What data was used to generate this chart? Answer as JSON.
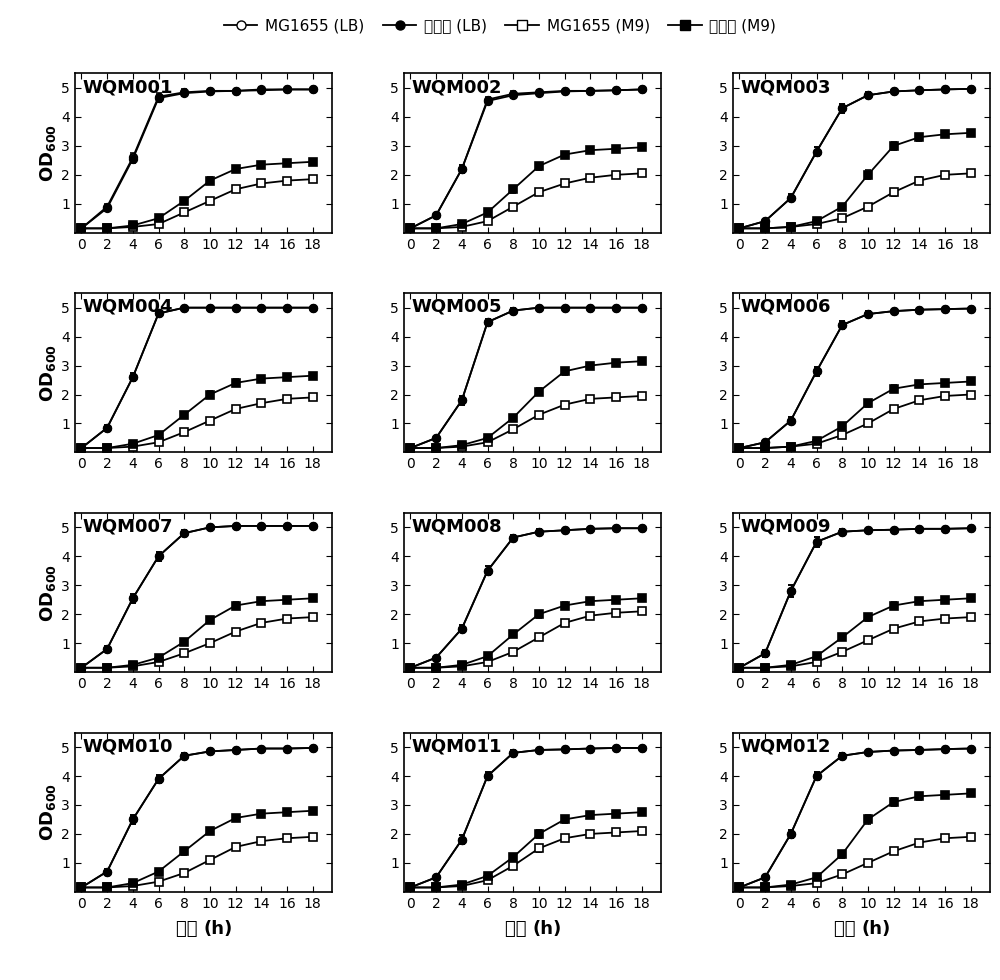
{
  "time_points": [
    0,
    2,
    4,
    6,
    8,
    10,
    12,
    14,
    16,
    18
  ],
  "subplots": [
    {
      "label": "WQM001",
      "MG1655_LB": [
        0.15,
        0.9,
        2.6,
        4.7,
        4.85,
        4.9,
        4.9,
        4.95,
        4.95,
        4.95
      ],
      "mutant_LB": [
        0.15,
        0.85,
        2.55,
        4.65,
        4.82,
        4.88,
        4.9,
        4.92,
        4.95,
        4.95
      ],
      "MG1655_M9": [
        0.15,
        0.15,
        0.2,
        0.3,
        0.7,
        1.1,
        1.5,
        1.7,
        1.8,
        1.85
      ],
      "mutant_M9": [
        0.15,
        0.15,
        0.25,
        0.5,
        1.1,
        1.8,
        2.2,
        2.35,
        2.4,
        2.45
      ],
      "MG1655_LB_err": [
        0.05,
        0.1,
        0.15,
        0.12,
        0.1,
        0.08,
        0.07,
        0.07,
        0.06,
        0.06
      ],
      "mutant_LB_err": [
        0.05,
        0.1,
        0.15,
        0.12,
        0.1,
        0.08,
        0.07,
        0.07,
        0.06,
        0.06
      ],
      "MG1655_M9_err": [
        0.02,
        0.02,
        0.03,
        0.05,
        0.08,
        0.1,
        0.1,
        0.1,
        0.08,
        0.08
      ],
      "mutant_M9_err": [
        0.02,
        0.02,
        0.04,
        0.07,
        0.1,
        0.12,
        0.12,
        0.1,
        0.08,
        0.08
      ]
    },
    {
      "label": "WQM002",
      "MG1655_LB": [
        0.15,
        0.6,
        2.2,
        4.6,
        4.8,
        4.85,
        4.9,
        4.9,
        4.92,
        4.95
      ],
      "mutant_LB": [
        0.15,
        0.6,
        2.2,
        4.55,
        4.75,
        4.82,
        4.88,
        4.9,
        4.92,
        4.95
      ],
      "MG1655_M9": [
        0.15,
        0.15,
        0.2,
        0.4,
        0.9,
        1.4,
        1.7,
        1.9,
        2.0,
        2.05
      ],
      "mutant_M9": [
        0.15,
        0.15,
        0.3,
        0.7,
        1.5,
        2.3,
        2.7,
        2.85,
        2.9,
        2.95
      ],
      "MG1655_LB_err": [
        0.05,
        0.08,
        0.15,
        0.1,
        0.08,
        0.07,
        0.06,
        0.06,
        0.05,
        0.05
      ],
      "mutant_LB_err": [
        0.05,
        0.08,
        0.15,
        0.1,
        0.08,
        0.07,
        0.06,
        0.06,
        0.05,
        0.05
      ],
      "MG1655_M9_err": [
        0.02,
        0.02,
        0.03,
        0.06,
        0.1,
        0.1,
        0.1,
        0.1,
        0.08,
        0.08
      ],
      "mutant_M9_err": [
        0.02,
        0.02,
        0.04,
        0.08,
        0.12,
        0.12,
        0.1,
        0.1,
        0.08,
        0.08
      ]
    },
    {
      "label": "WQM003",
      "MG1655_LB": [
        0.15,
        0.4,
        1.2,
        2.8,
        4.3,
        4.75,
        4.88,
        4.92,
        4.95,
        4.97
      ],
      "mutant_LB": [
        0.15,
        0.4,
        1.2,
        2.8,
        4.3,
        4.75,
        4.88,
        4.92,
        4.95,
        4.97
      ],
      "MG1655_M9": [
        0.15,
        0.15,
        0.2,
        0.3,
        0.5,
        0.9,
        1.4,
        1.8,
        2.0,
        2.05
      ],
      "mutant_M9": [
        0.15,
        0.15,
        0.2,
        0.4,
        0.9,
        2.0,
        3.0,
        3.3,
        3.4,
        3.45
      ],
      "MG1655_LB_err": [
        0.05,
        0.08,
        0.12,
        0.15,
        0.15,
        0.1,
        0.07,
        0.06,
        0.05,
        0.05
      ],
      "mutant_LB_err": [
        0.05,
        0.08,
        0.12,
        0.15,
        0.15,
        0.1,
        0.07,
        0.06,
        0.05,
        0.05
      ],
      "MG1655_M9_err": [
        0.02,
        0.02,
        0.03,
        0.04,
        0.07,
        0.1,
        0.12,
        0.12,
        0.1,
        0.08
      ],
      "mutant_M9_err": [
        0.02,
        0.02,
        0.03,
        0.06,
        0.1,
        0.15,
        0.15,
        0.12,
        0.1,
        0.08
      ]
    },
    {
      "label": "WQM004",
      "MG1655_LB": [
        0.15,
        0.85,
        2.6,
        4.8,
        5.0,
        5.0,
        5.0,
        5.0,
        5.0,
        5.0
      ],
      "mutant_LB": [
        0.15,
        0.85,
        2.6,
        4.8,
        5.0,
        5.0,
        5.0,
        5.0,
        5.0,
        5.0
      ],
      "MG1655_M9": [
        0.15,
        0.15,
        0.2,
        0.35,
        0.7,
        1.1,
        1.5,
        1.7,
        1.85,
        1.9
      ],
      "mutant_M9": [
        0.15,
        0.15,
        0.3,
        0.6,
        1.3,
        2.0,
        2.4,
        2.55,
        2.6,
        2.65
      ],
      "MG1655_LB_err": [
        0.05,
        0.1,
        0.15,
        0.1,
        0.07,
        0.06,
        0.05,
        0.05,
        0.05,
        0.05
      ],
      "mutant_LB_err": [
        0.05,
        0.1,
        0.15,
        0.1,
        0.07,
        0.06,
        0.05,
        0.05,
        0.05,
        0.05
      ],
      "MG1655_M9_err": [
        0.02,
        0.02,
        0.03,
        0.05,
        0.08,
        0.1,
        0.1,
        0.1,
        0.08,
        0.08
      ],
      "mutant_M9_err": [
        0.02,
        0.02,
        0.04,
        0.07,
        0.1,
        0.12,
        0.12,
        0.1,
        0.08,
        0.08
      ]
    },
    {
      "label": "WQM005",
      "MG1655_LB": [
        0.15,
        0.5,
        1.8,
        4.5,
        4.9,
        5.0,
        5.0,
        5.0,
        5.0,
        5.0
      ],
      "mutant_LB": [
        0.15,
        0.5,
        1.8,
        4.5,
        4.9,
        5.0,
        5.0,
        5.0,
        5.0,
        5.0
      ],
      "MG1655_M9": [
        0.15,
        0.15,
        0.2,
        0.35,
        0.8,
        1.3,
        1.65,
        1.85,
        1.9,
        1.95
      ],
      "mutant_M9": [
        0.15,
        0.15,
        0.25,
        0.5,
        1.2,
        2.1,
        2.8,
        3.0,
        3.1,
        3.15
      ],
      "MG1655_LB_err": [
        0.05,
        0.08,
        0.15,
        0.12,
        0.08,
        0.07,
        0.06,
        0.05,
        0.05,
        0.05
      ],
      "mutant_LB_err": [
        0.05,
        0.08,
        0.15,
        0.12,
        0.08,
        0.07,
        0.06,
        0.05,
        0.05,
        0.05
      ],
      "MG1655_M9_err": [
        0.02,
        0.02,
        0.03,
        0.05,
        0.09,
        0.1,
        0.1,
        0.1,
        0.08,
        0.08
      ],
      "mutant_M9_err": [
        0.02,
        0.02,
        0.04,
        0.07,
        0.1,
        0.13,
        0.12,
        0.1,
        0.08,
        0.08
      ]
    },
    {
      "label": "WQM006",
      "MG1655_LB": [
        0.15,
        0.35,
        1.1,
        2.8,
        4.4,
        4.78,
        4.88,
        4.93,
        4.95,
        4.97
      ],
      "mutant_LB": [
        0.15,
        0.35,
        1.1,
        2.8,
        4.4,
        4.78,
        4.88,
        4.93,
        4.95,
        4.97
      ],
      "MG1655_M9": [
        0.15,
        0.15,
        0.2,
        0.3,
        0.6,
        1.0,
        1.5,
        1.8,
        1.95,
        2.0
      ],
      "mutant_M9": [
        0.15,
        0.15,
        0.2,
        0.4,
        0.9,
        1.7,
        2.2,
        2.35,
        2.4,
        2.45
      ],
      "MG1655_LB_err": [
        0.05,
        0.07,
        0.12,
        0.15,
        0.15,
        0.1,
        0.07,
        0.06,
        0.05,
        0.05
      ],
      "mutant_LB_err": [
        0.05,
        0.07,
        0.12,
        0.15,
        0.15,
        0.1,
        0.07,
        0.06,
        0.05,
        0.05
      ],
      "MG1655_M9_err": [
        0.02,
        0.02,
        0.03,
        0.04,
        0.08,
        0.1,
        0.1,
        0.1,
        0.08,
        0.08
      ],
      "mutant_M9_err": [
        0.02,
        0.02,
        0.03,
        0.06,
        0.1,
        0.12,
        0.12,
        0.1,
        0.08,
        0.08
      ]
    },
    {
      "label": "WQM007",
      "MG1655_LB": [
        0.15,
        0.8,
        2.55,
        4.0,
        4.8,
        5.0,
        5.05,
        5.05,
        5.05,
        5.05
      ],
      "mutant_LB": [
        0.15,
        0.8,
        2.55,
        4.0,
        4.8,
        5.0,
        5.05,
        5.05,
        5.05,
        5.05
      ],
      "MG1655_M9": [
        0.15,
        0.15,
        0.2,
        0.35,
        0.65,
        1.0,
        1.4,
        1.7,
        1.85,
        1.9
      ],
      "mutant_M9": [
        0.15,
        0.15,
        0.25,
        0.5,
        1.05,
        1.8,
        2.3,
        2.45,
        2.5,
        2.55
      ],
      "MG1655_LB_err": [
        0.05,
        0.1,
        0.15,
        0.15,
        0.1,
        0.07,
        0.06,
        0.05,
        0.05,
        0.05
      ],
      "mutant_LB_err": [
        0.05,
        0.1,
        0.15,
        0.15,
        0.1,
        0.07,
        0.06,
        0.05,
        0.05,
        0.05
      ],
      "MG1655_M9_err": [
        0.02,
        0.02,
        0.03,
        0.05,
        0.08,
        0.1,
        0.1,
        0.1,
        0.08,
        0.08
      ],
      "mutant_M9_err": [
        0.02,
        0.02,
        0.04,
        0.07,
        0.1,
        0.12,
        0.12,
        0.1,
        0.08,
        0.08
      ]
    },
    {
      "label": "WQM008",
      "MG1655_LB": [
        0.15,
        0.5,
        1.5,
        3.5,
        4.65,
        4.85,
        4.9,
        4.95,
        4.97,
        4.97
      ],
      "mutant_LB": [
        0.15,
        0.5,
        1.5,
        3.5,
        4.65,
        4.85,
        4.9,
        4.95,
        4.97,
        4.97
      ],
      "MG1655_M9": [
        0.15,
        0.15,
        0.2,
        0.35,
        0.7,
        1.2,
        1.7,
        1.95,
        2.05,
        2.1
      ],
      "mutant_M9": [
        0.15,
        0.15,
        0.25,
        0.55,
        1.3,
        2.0,
        2.3,
        2.45,
        2.5,
        2.55
      ],
      "MG1655_LB_err": [
        0.05,
        0.07,
        0.12,
        0.15,
        0.1,
        0.08,
        0.06,
        0.06,
        0.05,
        0.05
      ],
      "mutant_LB_err": [
        0.05,
        0.07,
        0.12,
        0.15,
        0.1,
        0.08,
        0.06,
        0.06,
        0.05,
        0.05
      ],
      "MG1655_M9_err": [
        0.02,
        0.02,
        0.03,
        0.05,
        0.09,
        0.1,
        0.1,
        0.1,
        0.08,
        0.08
      ],
      "mutant_M9_err": [
        0.02,
        0.02,
        0.04,
        0.07,
        0.1,
        0.12,
        0.12,
        0.1,
        0.08,
        0.08
      ]
    },
    {
      "label": "WQM009",
      "MG1655_LB": [
        0.15,
        0.65,
        2.8,
        4.5,
        4.85,
        4.9,
        4.92,
        4.95,
        4.95,
        4.97
      ],
      "mutant_LB": [
        0.15,
        0.65,
        2.8,
        4.5,
        4.85,
        4.9,
        4.92,
        4.95,
        4.95,
        4.97
      ],
      "MG1655_M9": [
        0.15,
        0.15,
        0.2,
        0.35,
        0.7,
        1.1,
        1.5,
        1.75,
        1.85,
        1.9
      ],
      "mutant_M9": [
        0.15,
        0.15,
        0.25,
        0.55,
        1.2,
        1.9,
        2.3,
        2.45,
        2.5,
        2.55
      ],
      "MG1655_LB_err": [
        0.05,
        0.12,
        0.22,
        0.18,
        0.1,
        0.08,
        0.07,
        0.06,
        0.05,
        0.05
      ],
      "mutant_LB_err": [
        0.05,
        0.12,
        0.22,
        0.18,
        0.1,
        0.08,
        0.07,
        0.06,
        0.05,
        0.05
      ],
      "MG1655_M9_err": [
        0.02,
        0.02,
        0.03,
        0.05,
        0.08,
        0.1,
        0.1,
        0.1,
        0.08,
        0.08
      ],
      "mutant_M9_err": [
        0.02,
        0.02,
        0.04,
        0.07,
        0.1,
        0.12,
        0.12,
        0.1,
        0.08,
        0.08
      ]
    },
    {
      "label": "WQM010",
      "MG1655_LB": [
        0.15,
        0.7,
        2.5,
        3.9,
        4.7,
        4.85,
        4.9,
        4.95,
        4.95,
        4.97
      ],
      "mutant_LB": [
        0.15,
        0.7,
        2.5,
        3.9,
        4.7,
        4.85,
        4.9,
        4.95,
        4.95,
        4.97
      ],
      "MG1655_M9": [
        0.15,
        0.15,
        0.2,
        0.35,
        0.65,
        1.1,
        1.55,
        1.75,
        1.85,
        1.9
      ],
      "mutant_M9": [
        0.15,
        0.15,
        0.3,
        0.7,
        1.4,
        2.1,
        2.55,
        2.7,
        2.75,
        2.8
      ],
      "MG1655_LB_err": [
        0.05,
        0.1,
        0.15,
        0.15,
        0.1,
        0.08,
        0.07,
        0.06,
        0.05,
        0.05
      ],
      "mutant_LB_err": [
        0.05,
        0.1,
        0.15,
        0.15,
        0.1,
        0.08,
        0.07,
        0.06,
        0.05,
        0.05
      ],
      "MG1655_M9_err": [
        0.02,
        0.02,
        0.03,
        0.05,
        0.08,
        0.1,
        0.1,
        0.1,
        0.08,
        0.08
      ],
      "mutant_M9_err": [
        0.02,
        0.02,
        0.04,
        0.08,
        0.12,
        0.12,
        0.1,
        0.1,
        0.08,
        0.08
      ]
    },
    {
      "label": "WQM011",
      "MG1655_LB": [
        0.15,
        0.5,
        1.8,
        4.0,
        4.8,
        4.9,
        4.92,
        4.95,
        4.97,
        4.97
      ],
      "mutant_LB": [
        0.15,
        0.5,
        1.8,
        4.0,
        4.8,
        4.9,
        4.92,
        4.95,
        4.97,
        4.97
      ],
      "MG1655_M9": [
        0.15,
        0.15,
        0.2,
        0.4,
        0.9,
        1.5,
        1.85,
        2.0,
        2.05,
        2.1
      ],
      "mutant_M9": [
        0.15,
        0.15,
        0.25,
        0.55,
        1.2,
        2.0,
        2.5,
        2.65,
        2.7,
        2.75
      ],
      "MG1655_LB_err": [
        0.05,
        0.08,
        0.15,
        0.15,
        0.1,
        0.07,
        0.06,
        0.05,
        0.05,
        0.05
      ],
      "mutant_LB_err": [
        0.05,
        0.08,
        0.15,
        0.15,
        0.1,
        0.07,
        0.06,
        0.05,
        0.05,
        0.05
      ],
      "MG1655_M9_err": [
        0.02,
        0.02,
        0.03,
        0.06,
        0.1,
        0.12,
        0.1,
        0.1,
        0.08,
        0.08
      ],
      "mutant_M9_err": [
        0.02,
        0.02,
        0.04,
        0.07,
        0.12,
        0.13,
        0.12,
        0.1,
        0.08,
        0.08
      ]
    },
    {
      "label": "WQM012",
      "MG1655_LB": [
        0.15,
        0.5,
        2.0,
        4.0,
        4.7,
        4.83,
        4.88,
        4.9,
        4.93,
        4.95
      ],
      "mutant_LB": [
        0.15,
        0.5,
        2.0,
        4.0,
        4.7,
        4.83,
        4.88,
        4.9,
        4.93,
        4.95
      ],
      "MG1655_M9": [
        0.15,
        0.15,
        0.2,
        0.3,
        0.6,
        1.0,
        1.4,
        1.7,
        1.85,
        1.9
      ],
      "mutant_M9": [
        0.15,
        0.15,
        0.25,
        0.5,
        1.3,
        2.5,
        3.1,
        3.3,
        3.35,
        3.4
      ],
      "MG1655_LB_err": [
        0.05,
        0.08,
        0.15,
        0.15,
        0.1,
        0.08,
        0.07,
        0.06,
        0.05,
        0.05
      ],
      "mutant_LB_err": [
        0.05,
        0.08,
        0.15,
        0.15,
        0.1,
        0.08,
        0.07,
        0.06,
        0.05,
        0.05
      ],
      "MG1655_M9_err": [
        0.02,
        0.02,
        0.03,
        0.04,
        0.08,
        0.1,
        0.1,
        0.1,
        0.08,
        0.08
      ],
      "mutant_M9_err": [
        0.02,
        0.02,
        0.04,
        0.07,
        0.12,
        0.15,
        0.15,
        0.12,
        0.1,
        0.08
      ]
    }
  ],
  "legend_labels": [
    "MG1655 (LB)",
    "突变株 (LB)",
    "MG1655 (M9)",
    "突变株 (M9)"
  ],
  "xlabel_zh": "时间",
  "xlabel_h": "(h)",
  "ylabel": "OD",
  "ylim": [
    0,
    5.5
  ],
  "yticks": [
    1,
    2,
    3,
    4,
    5
  ],
  "xticks": [
    0,
    2,
    4,
    6,
    8,
    10,
    12,
    14,
    16,
    18
  ],
  "title_fontsize": 13,
  "label_fontsize": 12,
  "tick_fontsize": 10,
  "linewidth": 1.3,
  "markersize": 5.5
}
